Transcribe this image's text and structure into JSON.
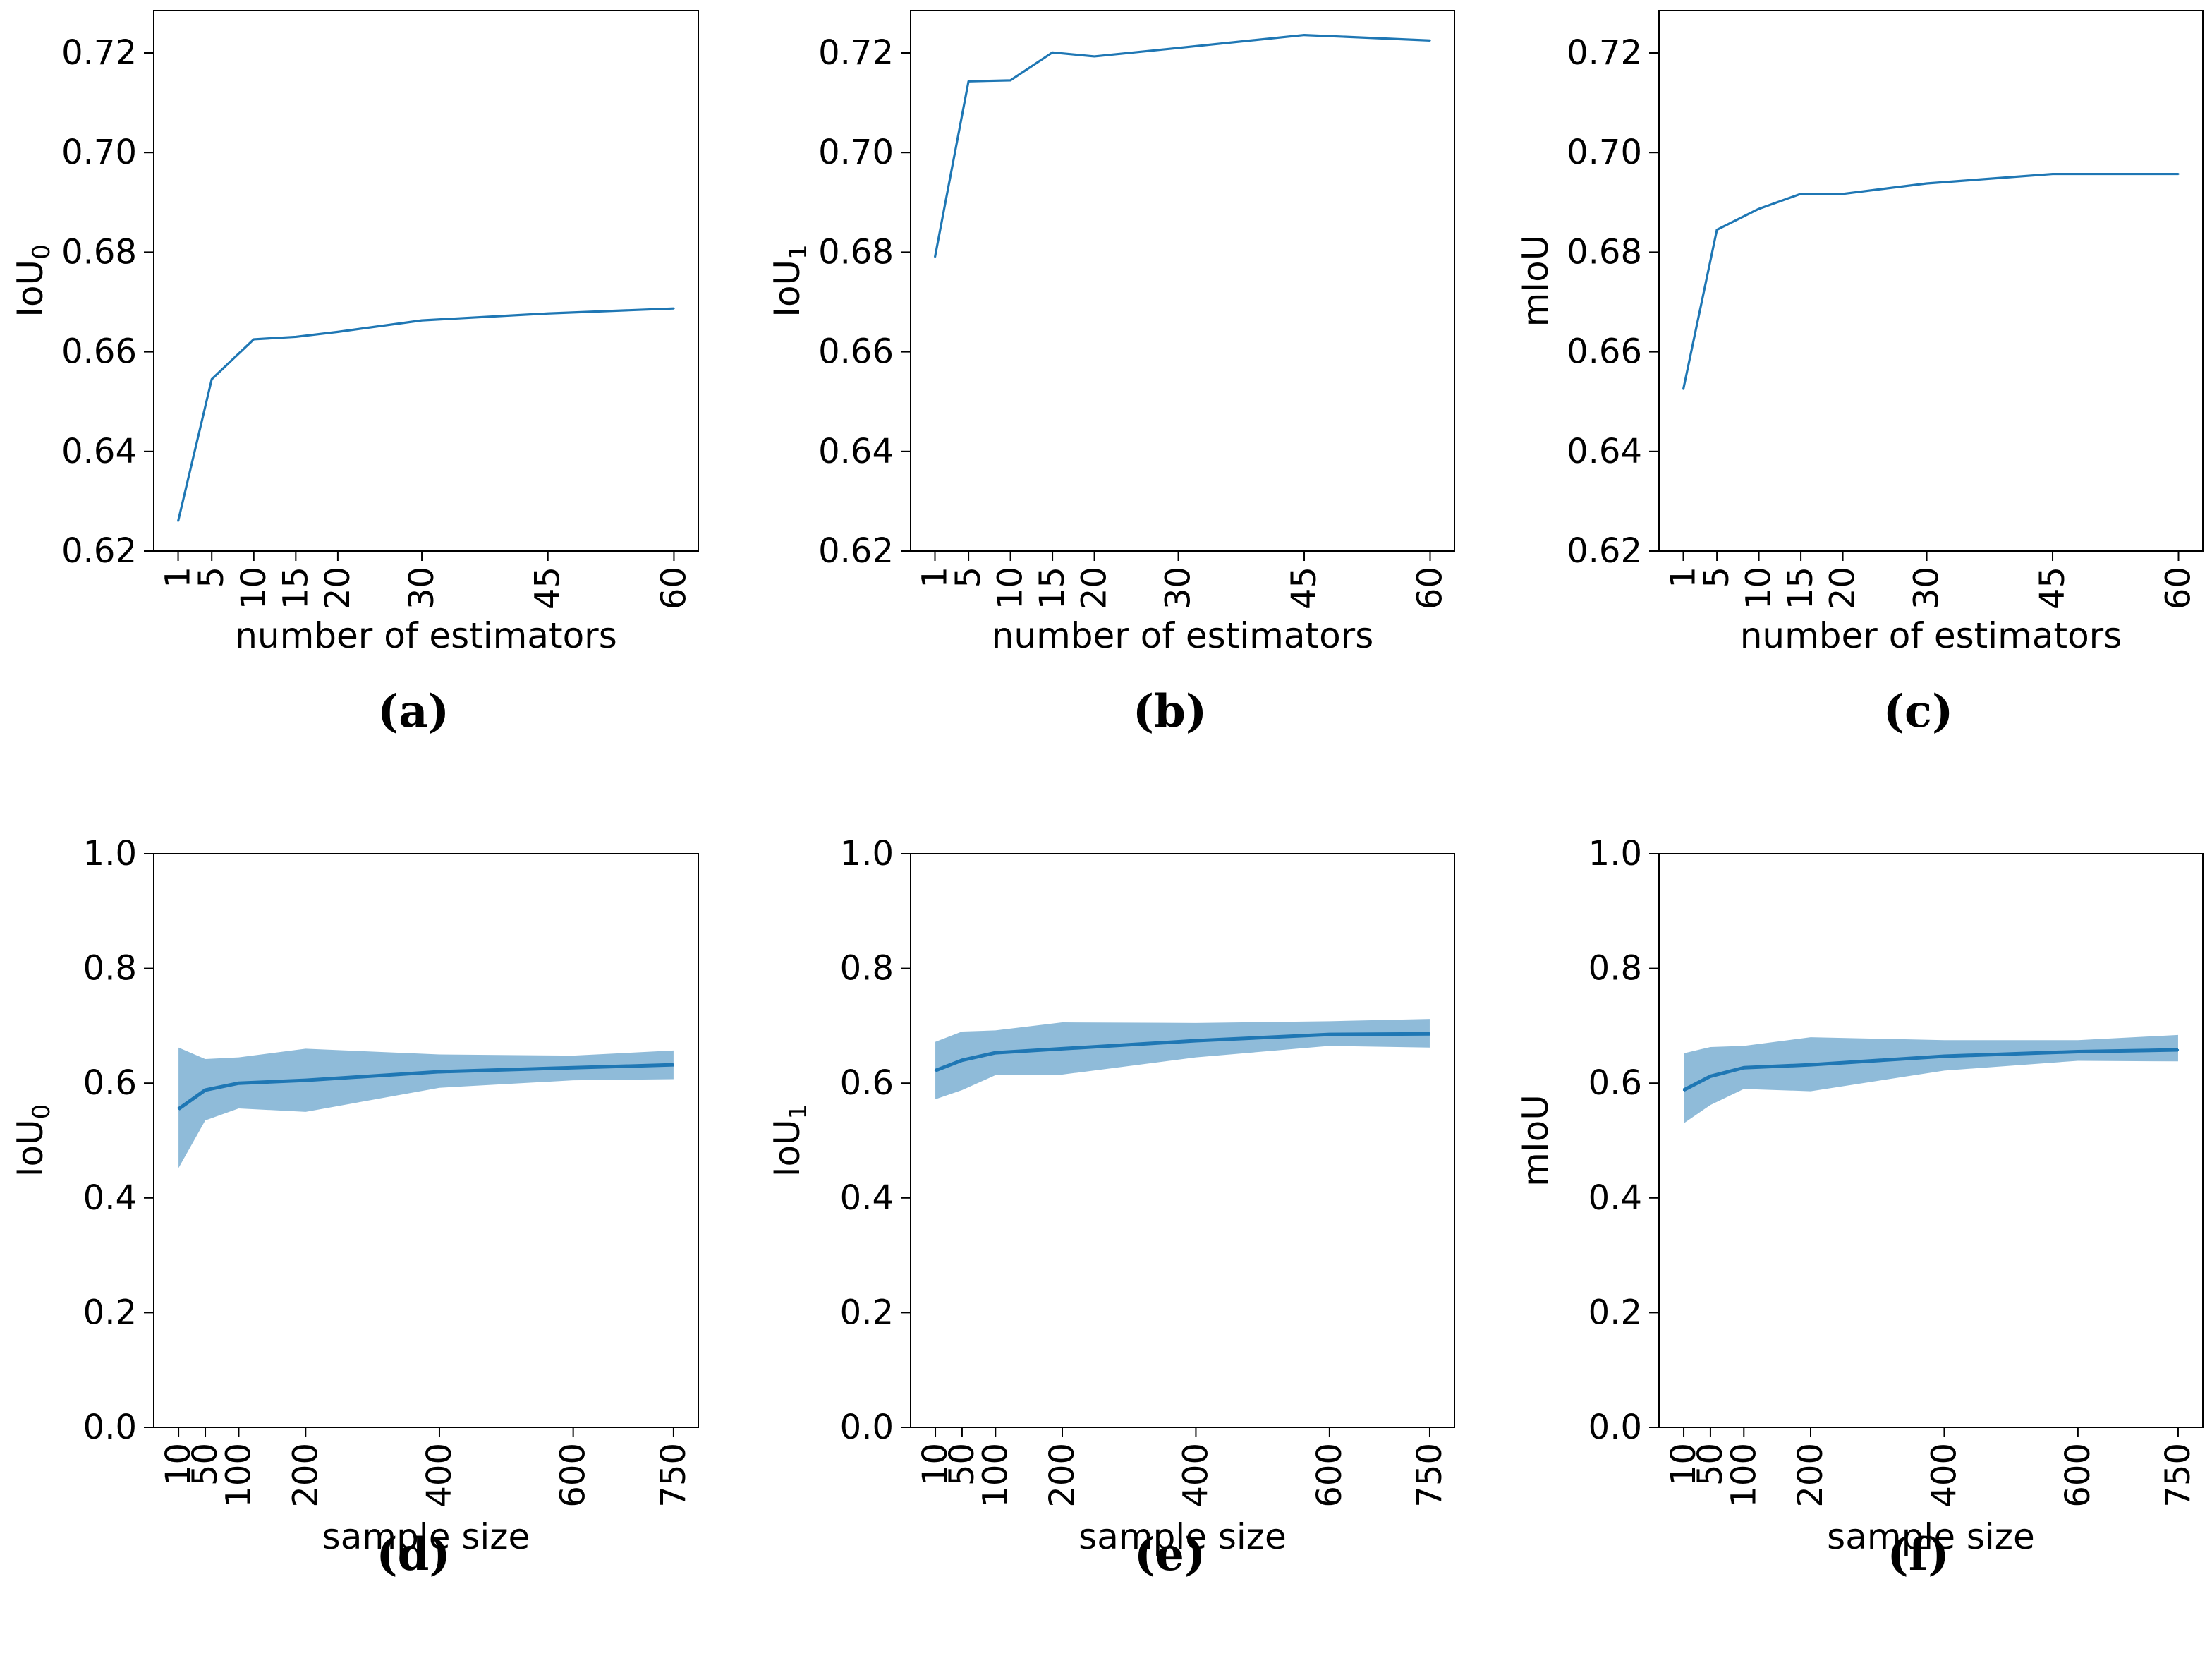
{
  "figure": {
    "colors": {
      "line": "#1f77b4",
      "band": "#1f77b4",
      "axis": "#000000"
    },
    "y_tick_labels_top": [
      "0.62",
      "0.64",
      "0.66",
      "0.68",
      "0.70",
      "0.72"
    ],
    "y_tick_labels_bottom": [
      "0.0",
      "0.2",
      "0.4",
      "0.6",
      "0.8",
      "1.0"
    ]
  },
  "chart_data": [
    {
      "panel": "a",
      "type": "line",
      "caption": "(a)",
      "xlabel": "number of estimators",
      "ylabel": "IoU",
      "ylabel_subscript": "0",
      "x": [
        1,
        5,
        10,
        15,
        20,
        30,
        45,
        60
      ],
      "x_tick_labels": [
        "1",
        "5",
        "10",
        "15",
        "20",
        "30",
        "45",
        "60"
      ],
      "series": [
        {
          "values": [
            0.626,
            0.6545,
            0.6625,
            0.663,
            0.664,
            0.6663,
            0.6677,
            0.6687
          ]
        }
      ],
      "xlim": [
        -1.9,
        62.9
      ],
      "ylim": [
        0.62,
        0.7285
      ],
      "y_ticks": [
        0.62,
        0.64,
        0.66,
        0.68,
        0.7,
        0.72
      ],
      "grid": false
    },
    {
      "panel": "b",
      "type": "line",
      "caption": "(b)",
      "xlabel": "number of estimators",
      "ylabel": "IoU",
      "ylabel_subscript": "1",
      "x": [
        1,
        5,
        10,
        15,
        20,
        30,
        45,
        60
      ],
      "x_tick_labels": [
        "1",
        "5",
        "10",
        "15",
        "20",
        "30",
        "45",
        "60"
      ],
      "series": [
        {
          "values": [
            0.679,
            0.7143,
            0.7145,
            0.7201,
            0.7193,
            0.721,
            0.7236,
            0.7225
          ]
        }
      ],
      "xlim": [
        -1.9,
        62.9
      ],
      "ylim": [
        0.62,
        0.7285
      ],
      "y_ticks": [
        0.62,
        0.64,
        0.66,
        0.68,
        0.7,
        0.72
      ],
      "grid": false
    },
    {
      "panel": "c",
      "type": "line",
      "caption": "(c)",
      "xlabel": "number of estimators",
      "ylabel": "mIoU",
      "ylabel_subscript": "",
      "x": [
        1,
        5,
        10,
        15,
        20,
        30,
        45,
        60
      ],
      "x_tick_labels": [
        "1",
        "5",
        "10",
        "15",
        "20",
        "30",
        "45",
        "60"
      ],
      "series": [
        {
          "values": [
            0.6525,
            0.6845,
            0.6887,
            0.6917,
            0.6917,
            0.6938,
            0.6957,
            0.6957
          ]
        }
      ],
      "xlim": [
        -1.9,
        62.9
      ],
      "ylim": [
        0.62,
        0.7285
      ],
      "y_ticks": [
        0.62,
        0.64,
        0.66,
        0.68,
        0.7,
        0.72
      ],
      "grid": false
    },
    {
      "panel": "d",
      "type": "area",
      "caption": "(d)",
      "xlabel": "sample size",
      "ylabel": "IoU",
      "ylabel_subscript": "0",
      "x": [
        10,
        50,
        100,
        200,
        400,
        600,
        750
      ],
      "x_tick_labels": [
        "10",
        "50",
        "100",
        "200",
        "400",
        "600",
        "750"
      ],
      "series": [
        {
          "values": [
            0.555,
            0.588,
            0.6,
            0.605,
            0.62,
            0.627,
            0.632
          ]
        }
      ],
      "band_upper": [
        0.662,
        0.642,
        0.645,
        0.66,
        0.65,
        0.648,
        0.657
      ],
      "band_lower": [
        0.452,
        0.535,
        0.556,
        0.55,
        0.592,
        0.605,
        0.607
      ],
      "xlim": [
        -27,
        787
      ],
      "ylim": [
        0,
        1.0
      ],
      "y_ticks": [
        0.0,
        0.2,
        0.4,
        0.6,
        0.8,
        1.0
      ],
      "grid": false
    },
    {
      "panel": "e",
      "type": "area",
      "caption": "(e)",
      "xlabel": "sample size",
      "ylabel": "IoU",
      "ylabel_subscript": "1",
      "x": [
        10,
        50,
        100,
        200,
        400,
        600,
        750
      ],
      "x_tick_labels": [
        "10",
        "50",
        "100",
        "200",
        "400",
        "600",
        "750"
      ],
      "series": [
        {
          "values": [
            0.622,
            0.64,
            0.653,
            0.66,
            0.674,
            0.685,
            0.686
          ]
        }
      ],
      "band_upper": [
        0.672,
        0.69,
        0.692,
        0.706,
        0.705,
        0.708,
        0.712
      ],
      "band_lower": [
        0.572,
        0.588,
        0.614,
        0.615,
        0.645,
        0.665,
        0.662
      ],
      "xlim": [
        -27,
        787
      ],
      "ylim": [
        0,
        1.0
      ],
      "y_ticks": [
        0.0,
        0.2,
        0.4,
        0.6,
        0.8,
        1.0
      ],
      "grid": false
    },
    {
      "panel": "f",
      "type": "area",
      "caption": "(f)",
      "xlabel": "sample size",
      "ylabel": "mIoU",
      "ylabel_subscript": "",
      "x": [
        10,
        50,
        100,
        200,
        400,
        600,
        750
      ],
      "x_tick_labels": [
        "10",
        "50",
        "100",
        "200",
        "400",
        "600",
        "750"
      ],
      "series": [
        {
          "values": [
            0.588,
            0.612,
            0.627,
            0.632,
            0.647,
            0.655,
            0.658
          ]
        }
      ],
      "band_upper": [
        0.652,
        0.663,
        0.665,
        0.68,
        0.675,
        0.675,
        0.684
      ],
      "band_lower": [
        0.53,
        0.562,
        0.59,
        0.586,
        0.622,
        0.639,
        0.638
      ],
      "xlim": [
        -27,
        787
      ],
      "ylim": [
        0,
        1.0
      ],
      "y_ticks": [
        0.0,
        0.2,
        0.4,
        0.6,
        0.8,
        1.0
      ],
      "grid": false
    }
  ]
}
